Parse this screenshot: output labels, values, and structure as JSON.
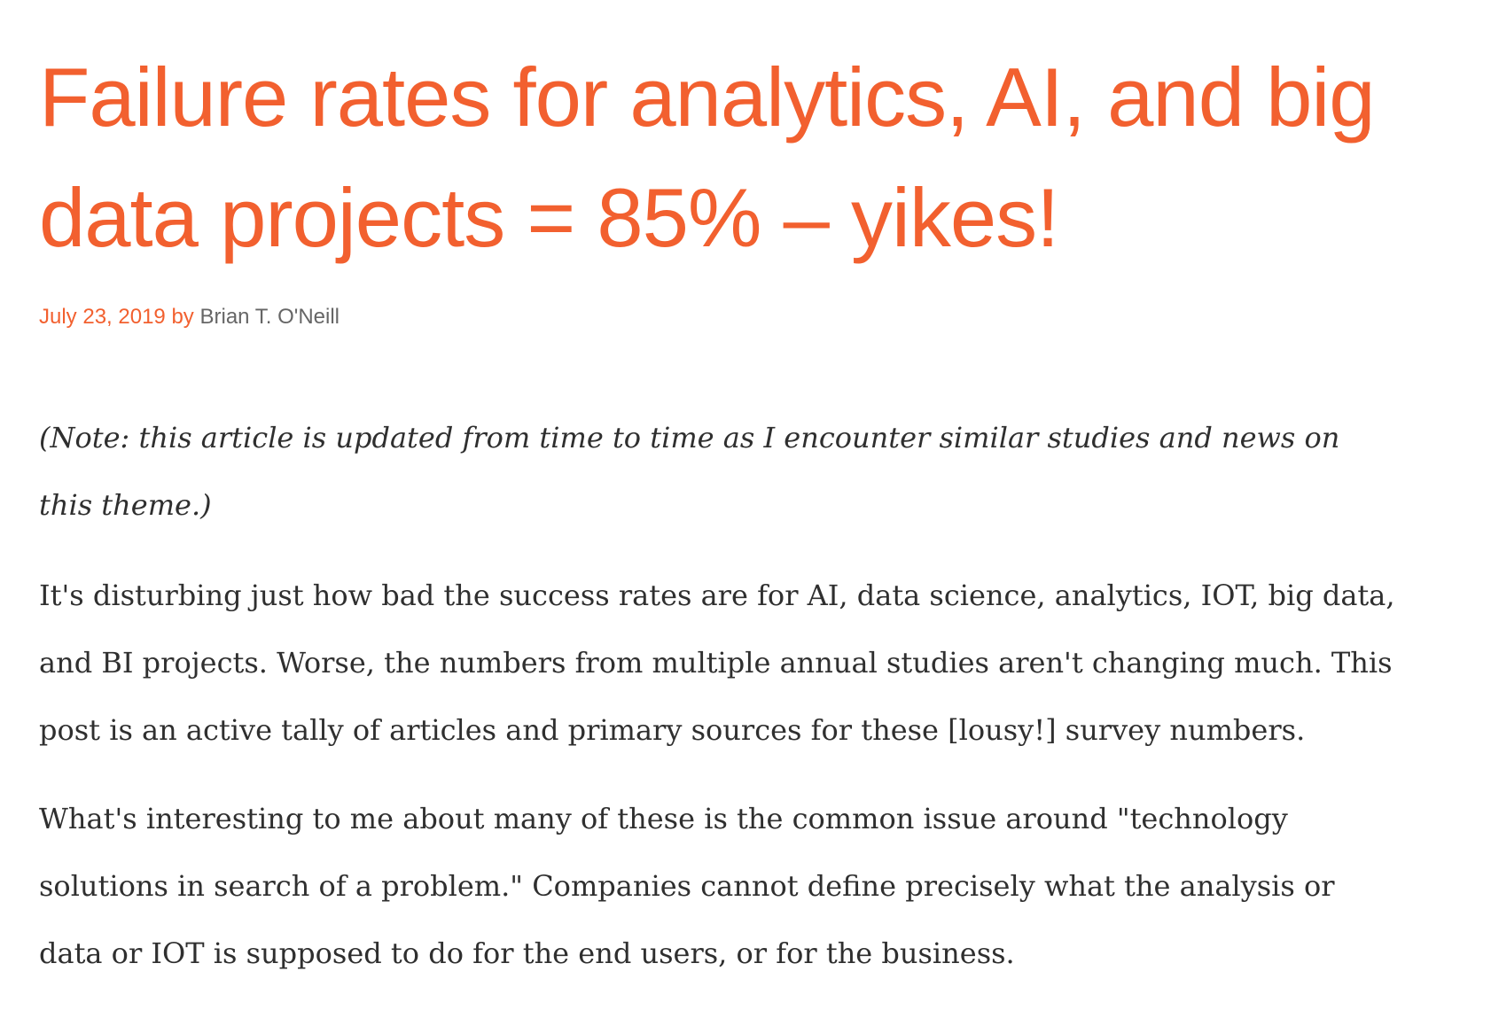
{
  "article": {
    "title_lines": [
      "Failure rates for analytics, AI, and big",
      "data projects = 85% – yikes!"
    ],
    "meta": {
      "date": "July 23, 2019",
      "by": "by",
      "author": "Brian T. O'Neill"
    },
    "paragraphs": [
      {
        "lines": [
          "(Note: this article is updated from time to time as I encounter similar studies and news on",
          "this theme.)"
        ]
      },
      {
        "lines": [
          "It's disturbing just how bad the success rates are for AI, data science, analytics, IOT, big data,",
          "and BI projects. Worse, the numbers from multiple annual studies aren't changing much. This",
          "post is an active tally of articles and primary sources for these [lousy!] survey numbers."
        ]
      },
      {
        "lines": [
          "What's interesting to me about many of these is the common issue around \"technology",
          "solutions in search of a problem.\" Companies cannot define precisely what the analysis or",
          "data or IOT is supposed to do for the end users, or for the business."
        ]
      }
    ]
  },
  "colors": {
    "accent": "#f2602f",
    "body_text": "#2f2f2f",
    "author_text": "#666666",
    "background": "#ffffff"
  }
}
